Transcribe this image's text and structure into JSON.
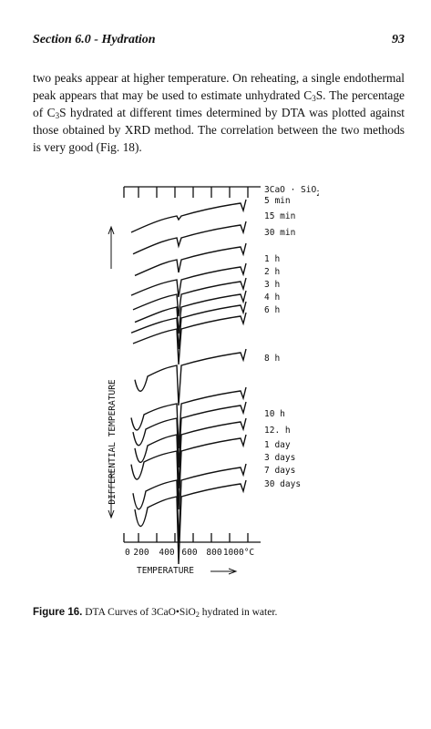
{
  "header": {
    "section": "Section 6.0 - Hydration",
    "page_number": "93"
  },
  "body": {
    "seg1": "two peaks appear at higher temperature. On reheating, a single endothermal peak appears that may be used to estimate unhydrated C",
    "sub1": "3",
    "seg2": "S. The percentage of C",
    "sub2": "3",
    "seg3": "S hydrated at different times determined by DTA was plotted against those obtained by XRD method. The correlation between the two methods is very good (Fig. 18)."
  },
  "figure": {
    "y_axis_label": "DIFFERENTIAL TEMPERATURE",
    "x_axis_label": "TEMPERATURE",
    "x_ticks": [
      "0",
      "200",
      "400",
      "600",
      "800",
      "1000°C"
    ],
    "curve_labels": [
      {
        "line1": "3CaO · SiO",
        "sub": "2",
        "line2": "5 min"
      },
      {
        "line1": "15 min"
      },
      {
        "line1": "30 min"
      },
      {
        "line1": "1 h"
      },
      {
        "line1": "2 h"
      },
      {
        "line1": "3 h"
      },
      {
        "line1": "4 h"
      },
      {
        "line1": "6 h"
      },
      {
        "line1": "8 h"
      },
      {
        "line1": "10 h"
      },
      {
        "line1": "12. h"
      },
      {
        "line1": "1 day"
      },
      {
        "line1": "3 days"
      },
      {
        "line1": "7 days"
      },
      {
        "line1": "30 days"
      }
    ]
  },
  "caption": {
    "label": "Figure 16.",
    "text_a": " DTA Curves of 3CaO•SiO",
    "sub": "2",
    "text_b": " hydrated in water."
  }
}
